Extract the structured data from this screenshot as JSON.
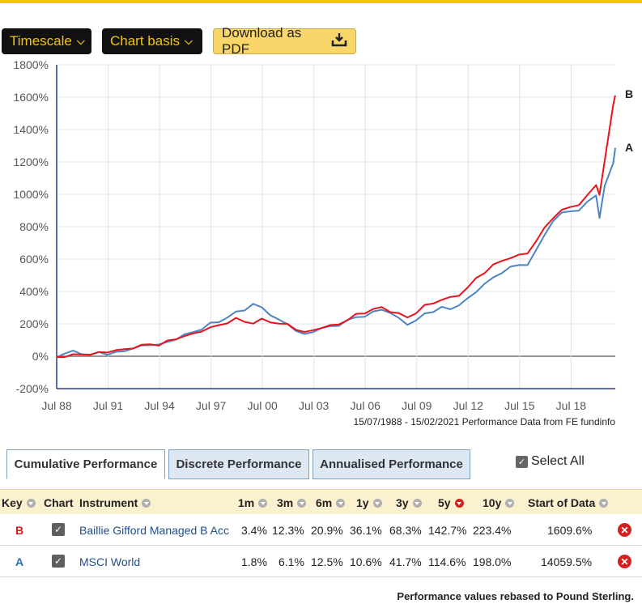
{
  "toolbar": {
    "timescale_label": "Timescale",
    "chart_basis_label": "Chart basis",
    "download_label": "Download as PDF"
  },
  "chart_data": {
    "type": "line",
    "y_ticks": [
      "1800%",
      "1600%",
      "1400%",
      "1200%",
      "1000%",
      "800%",
      "600%",
      "400%",
      "200%",
      "0%",
      "-200%"
    ],
    "ylim": [
      -200,
      1800
    ],
    "x_ticks": [
      "Jul 88",
      "Jul 91",
      "Jul 94",
      "Jul 97",
      "Jul 00",
      "Jul 03",
      "Jul 06",
      "Jul 09",
      "Jul 12",
      "Jul 15",
      "Jul 18"
    ],
    "x_tick_years": [
      1988.54,
      1991.54,
      1994.54,
      1997.54,
      2000.54,
      2003.54,
      2006.54,
      2009.54,
      2012.54,
      2015.54,
      2018.54
    ],
    "xlim": [
      1988.54,
      2021.12
    ],
    "grid": true,
    "caption": "15/07/1988 - 15/02/2021 Performance Data from FE fundinfo",
    "series": [
      {
        "name": "B",
        "color": "#e8141c",
        "x": [
          1988.54,
          1989.0,
          1989.5,
          1990.0,
          1990.5,
          1991.0,
          1991.5,
          1992.0,
          1992.5,
          1993.0,
          1993.5,
          1994.0,
          1994.5,
          1995.0,
          1995.5,
          1996.0,
          1996.5,
          1997.0,
          1997.5,
          1998.0,
          1998.5,
          1999.0,
          1999.5,
          2000.0,
          2000.5,
          2001.0,
          2001.5,
          2002.0,
          2002.5,
          2003.0,
          2003.5,
          2004.0,
          2004.5,
          2005.0,
          2005.5,
          2006.0,
          2006.5,
          2007.0,
          2007.5,
          2008.0,
          2008.5,
          2009.0,
          2009.5,
          2010.0,
          2010.5,
          2011.0,
          2011.5,
          2012.0,
          2012.5,
          2013.0,
          2013.5,
          2014.0,
          2014.5,
          2015.0,
          2015.5,
          2016.0,
          2016.5,
          2017.0,
          2017.5,
          2018.0,
          2018.5,
          2019.0,
          2019.5,
          2020.0,
          2020.2,
          2020.5,
          2021.0,
          2021.12
        ],
        "y": [
          -5,
          0,
          5,
          15,
          10,
          20,
          30,
          35,
          40,
          55,
          65,
          75,
          70,
          90,
          110,
          125,
          135,
          160,
          175,
          190,
          210,
          230,
          215,
          205,
          225,
          215,
          200,
          195,
          170,
          145,
          160,
          180,
          185,
          200,
          225,
          255,
          270,
          290,
          300,
          280,
          260,
          240,
          270,
          310,
          330,
          350,
          360,
          380,
          420,
          480,
          520,
          560,
          590,
          610,
          620,
          640,
          710,
          790,
          860,
          900,
          920,
          940,
          990,
          1060,
          1000,
          1200,
          1560,
          1609.6
        ]
      },
      {
        "name": "A",
        "color": "#4d85c4",
        "x": [
          1988.54,
          1989.0,
          1989.5,
          1990.0,
          1990.5,
          1991.0,
          1991.5,
          1992.0,
          1992.5,
          1993.0,
          1993.5,
          1994.0,
          1994.5,
          1995.0,
          1995.5,
          1996.0,
          1996.5,
          1997.0,
          1997.5,
          1998.0,
          1998.5,
          1999.0,
          1999.5,
          2000.0,
          2000.5,
          2001.0,
          2001.5,
          2002.0,
          2002.5,
          2003.0,
          2003.5,
          2004.0,
          2004.5,
          2005.0,
          2005.5,
          2006.0,
          2006.5,
          2007.0,
          2007.5,
          2008.0,
          2008.5,
          2009.0,
          2009.5,
          2010.0,
          2010.5,
          2011.0,
          2011.5,
          2012.0,
          2012.5,
          2013.0,
          2013.5,
          2014.0,
          2014.5,
          2015.0,
          2015.5,
          2016.0,
          2016.5,
          2017.0,
          2017.5,
          2018.0,
          2018.5,
          2019.0,
          2019.5,
          2020.0,
          2020.2,
          2020.5,
          2021.0,
          2021.12
        ],
        "y": [
          0,
          15,
          30,
          20,
          5,
          25,
          15,
          20,
          35,
          50,
          60,
          75,
          70,
          85,
          110,
          130,
          150,
          170,
          200,
          215,
          240,
          270,
          290,
          320,
          300,
          260,
          220,
          200,
          160,
          130,
          155,
          175,
          180,
          195,
          220,
          240,
          250,
          270,
          290,
          270,
          230,
          200,
          220,
          260,
          280,
          300,
          290,
          320,
          350,
          400,
          450,
          480,
          520,
          550,
          560,
          570,
          650,
          750,
          840,
          880,
          900,
          900,
          950,
          1000,
          850,
          1050,
          1200,
          1280
        ]
      }
    ]
  },
  "tabs": [
    {
      "label": "Cumulative Performance"
    },
    {
      "label": "Discrete Performance"
    },
    {
      "label": "Annualised Performance"
    }
  ],
  "select_all_label": "Select All",
  "table": {
    "headers": {
      "key": "Key",
      "chart": "Chart",
      "instrument": "Instrument",
      "m1": "1m",
      "m3": "3m",
      "m6": "6m",
      "y1": "1y",
      "y3": "3y",
      "y5": "5y",
      "y10": "10y",
      "start": "Start of Data"
    },
    "rows": [
      {
        "key": "B",
        "key_color": "#d01c1c",
        "instrument": "Baillie Gifford Managed B Acc",
        "m1": "3.4%",
        "m3": "12.3%",
        "m6": "20.9%",
        "y1": "36.1%",
        "y3": "68.3%",
        "y5": "142.7%",
        "y10": "223.4%",
        "start": "1609.6%"
      },
      {
        "key": "A",
        "key_color": "#2a6cb6",
        "instrument": "MSCI World",
        "m1": "1.8%",
        "m3": "6.1%",
        "m6": "12.5%",
        "y1": "10.6%",
        "y3": "41.7%",
        "y5": "114.6%",
        "y10": "198.0%",
        "start": "14059.5%"
      }
    ]
  },
  "footer_note": "Performance values rebased to Pound Sterling."
}
